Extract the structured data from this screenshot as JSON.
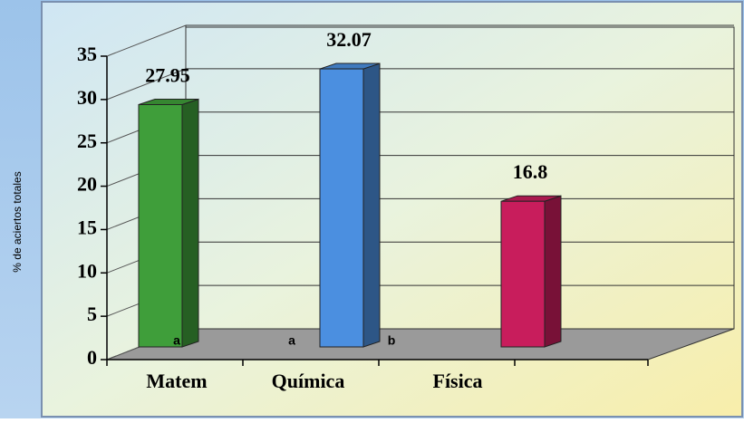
{
  "chart_data": {
    "type": "bar",
    "y_label": "% de aciertos totales",
    "categories": [
      "Matem",
      "Química",
      "Física"
    ],
    "values": [
      27.95,
      32.07,
      16.8
    ],
    "colors": [
      "#3f9e3a",
      "#4b8fe0",
      "#c81d5c"
    ],
    "annotations": [
      "a",
      "a",
      "b"
    ],
    "ylim": [
      0,
      35
    ],
    "yticks": [
      0,
      5,
      10,
      15,
      20,
      25,
      30,
      35
    ],
    "grid": true
  }
}
